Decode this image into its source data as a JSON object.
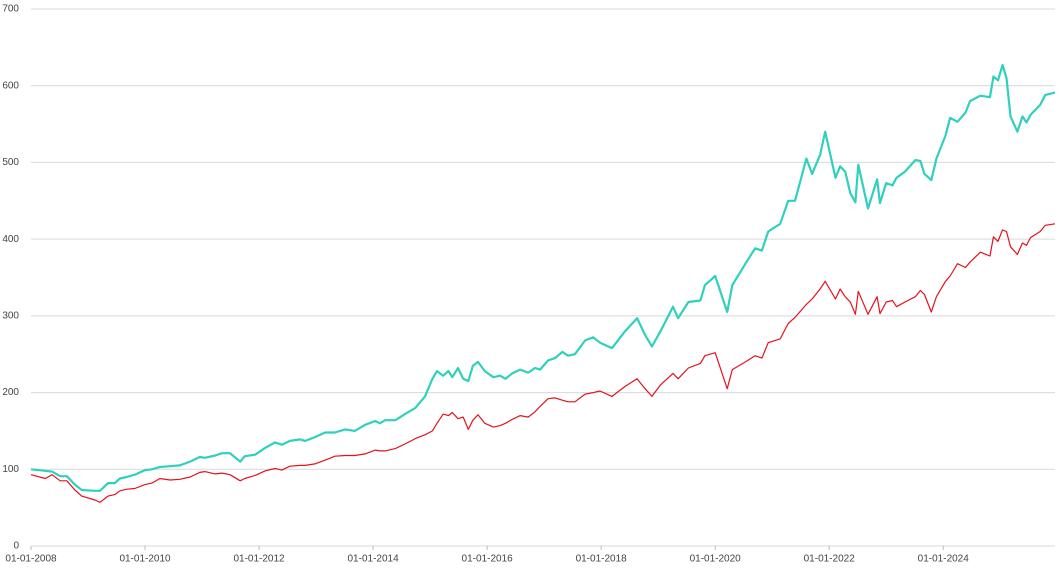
{
  "chart_data": {
    "type": "line",
    "x": [
      2008.0,
      2008.25,
      2008.37,
      2008.51,
      2008.63,
      2008.77,
      2008.89,
      2009.12,
      2009.21,
      2009.35,
      2009.47,
      2009.56,
      2009.68,
      2009.82,
      2010.0,
      2010.12,
      2010.26,
      2010.44,
      2010.61,
      2010.79,
      2010.96,
      2011.05,
      2011.23,
      2011.35,
      2011.49,
      2011.67,
      2011.75,
      2011.93,
      2012.11,
      2012.28,
      2012.4,
      2012.54,
      2012.72,
      2012.81,
      2012.98,
      2013.16,
      2013.33,
      2013.51,
      2013.68,
      2013.86,
      2014.04,
      2014.12,
      2014.21,
      2014.39,
      2014.56,
      2014.74,
      2014.91,
      2015.04,
      2015.12,
      2015.23,
      2015.32,
      2015.39,
      2015.49,
      2015.58,
      2015.67,
      2015.75,
      2015.84,
      2015.96,
      2016.11,
      2016.23,
      2016.32,
      2016.44,
      2016.58,
      2016.72,
      2016.84,
      2016.93,
      2017.07,
      2017.19,
      2017.32,
      2017.42,
      2017.54,
      2017.72,
      2017.86,
      2017.98,
      2018.19,
      2018.42,
      2018.63,
      2018.77,
      2018.89,
      2019.04,
      2019.26,
      2019.35,
      2019.53,
      2019.74,
      2019.82,
      2020.0,
      2020.21,
      2020.3,
      2020.53,
      2020.7,
      2020.82,
      2020.93,
      2021.14,
      2021.28,
      2021.4,
      2021.6,
      2021.7,
      2021.84,
      2021.93,
      2022.11,
      2022.19,
      2022.28,
      2022.37,
      2022.46,
      2022.51,
      2022.68,
      2022.84,
      2022.89,
      2023.0,
      2023.11,
      2023.18,
      2023.33,
      2023.51,
      2023.6,
      2023.67,
      2023.79,
      2023.88,
      2024.04,
      2024.12,
      2024.25,
      2024.39,
      2024.47,
      2024.65,
      2024.82,
      2024.88,
      2024.96,
      2025.04,
      2025.11,
      2025.18,
      2025.3,
      2025.39,
      2025.46,
      2025.53,
      2025.7,
      2025.79,
      2025.96
    ],
    "series": [
      {
        "color": "#2fd0bd",
        "values": [
          100,
          98,
          97,
          91,
          91,
          80,
          73,
          72,
          72,
          82,
          82,
          88,
          90,
          93,
          99,
          100,
          103,
          104,
          105,
          110,
          116,
          115,
          118,
          121,
          121,
          110,
          117,
          119,
          128,
          135,
          132,
          137,
          139,
          137,
          142,
          148,
          148,
          152,
          150,
          158,
          163,
          160,
          164,
          164,
          172,
          180,
          195,
          218,
          228,
          222,
          228,
          220,
          232,
          218,
          215,
          235,
          240,
          228,
          220,
          222,
          218,
          225,
          230,
          226,
          232,
          230,
          242,
          245,
          253,
          248,
          250,
          268,
          272,
          265,
          258,
          280,
          297,
          275,
          260,
          280,
          312,
          297,
          318,
          320,
          340,
          352,
          305,
          340,
          368,
          388,
          385,
          410,
          420,
          450,
          450,
          505,
          485,
          510,
          540,
          480,
          495,
          488,
          460,
          448,
          497,
          440,
          478,
          447,
          473,
          470,
          480,
          488,
          503,
          502,
          485,
          477,
          505,
          535,
          558,
          553,
          565,
          580,
          587,
          585,
          612,
          607,
          627,
          610,
          560,
          540,
          560,
          552,
          562,
          575,
          588,
          591
        ]
      },
      {
        "color": "#e3121c",
        "values": [
          93,
          88,
          93,
          85,
          85,
          73,
          65,
          60,
          57,
          65,
          67,
          72,
          74,
          75,
          80,
          82,
          88,
          86,
          87,
          90,
          96,
          97,
          94,
          95,
          93,
          85,
          88,
          92,
          98,
          101,
          99,
          104,
          105,
          105,
          107,
          112,
          117,
          118,
          118,
          120,
          125,
          124,
          124,
          127,
          133,
          140,
          145,
          150,
          160,
          172,
          170,
          174,
          166,
          168,
          152,
          164,
          171,
          160,
          155,
          157,
          160,
          165,
          170,
          168,
          175,
          182,
          192,
          193,
          190,
          188,
          188,
          198,
          200,
          202,
          195,
          208,
          218,
          205,
          195,
          210,
          225,
          218,
          232,
          238,
          248,
          252,
          205,
          230,
          240,
          248,
          245,
          265,
          270,
          290,
          298,
          315,
          322,
          335,
          345,
          322,
          335,
          325,
          318,
          302,
          332,
          302,
          325,
          303,
          318,
          320,
          312,
          318,
          325,
          333,
          328,
          305,
          325,
          345,
          352,
          368,
          363,
          370,
          383,
          378,
          403,
          397,
          412,
          410,
          390,
          380,
          395,
          392,
          402,
          410,
          418,
          420
        ]
      }
    ],
    "xlim": [
      2008,
      2025.96
    ],
    "xticks": [
      {
        "value": 2008,
        "label": "01-01-2008"
      },
      {
        "value": 2010,
        "label": "01-01-2010"
      },
      {
        "value": 2012,
        "label": "01-01-2012"
      },
      {
        "value": 2014,
        "label": "01-01-2014"
      },
      {
        "value": 2016,
        "label": "01-01-2016"
      },
      {
        "value": 2018,
        "label": "01-01-2018"
      },
      {
        "value": 2020,
        "label": "01-01-2020"
      },
      {
        "value": 2022,
        "label": "01-01-2022"
      },
      {
        "value": 2024,
        "label": "01-01-2024"
      }
    ],
    "ylim": [
      0,
      700
    ],
    "yticks": [
      0,
      100,
      200,
      300,
      400,
      500,
      600,
      700
    ],
    "grid": true
  }
}
